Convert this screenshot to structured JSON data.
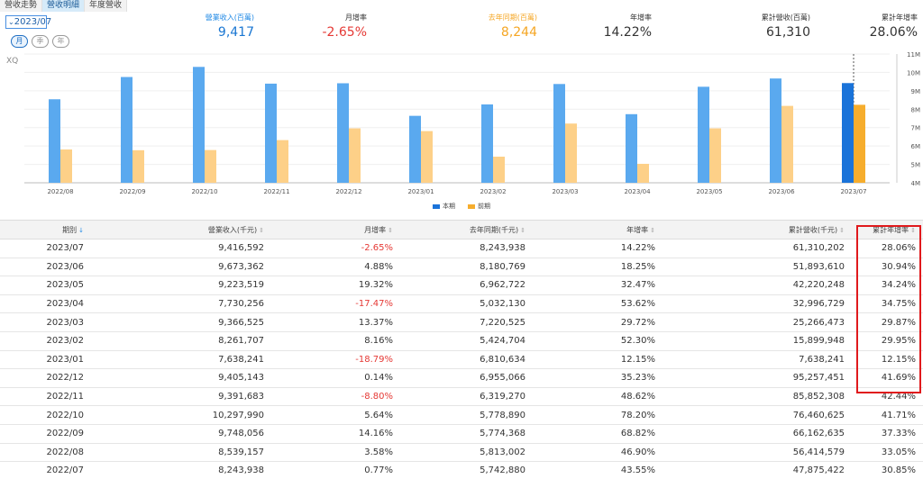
{
  "tabs": [
    "營收走勢",
    "營收明細",
    "年度營收"
  ],
  "active_tab": 1,
  "period_selector": {
    "value": "2023/07"
  },
  "pills": [
    "月",
    "季",
    "年"
  ],
  "stats": [
    {
      "label": "營業收入(百萬)",
      "value": "9,417"
    },
    {
      "label": "月增率",
      "value": "-2.65%"
    },
    {
      "label": "去年同期(百萬)",
      "value": "8,244"
    },
    {
      "label": "年增率",
      "value": "14.22%"
    },
    {
      "label": "累計營收(百萬)",
      "value": "61,310"
    },
    {
      "label": "累計年增率",
      "value": "28.06%"
    }
  ],
  "chart_watermark": "XQ",
  "colors": {
    "current": "#5aa9ef",
    "current_selected": "#1a73d9",
    "prior": "#fdd088",
    "prior_selected": "#f6ad2d",
    "negative": "#e53935",
    "highlight": "#e0191c"
  },
  "chart_data": {
    "type": "bar",
    "categories": [
      "2022/08",
      "2022/09",
      "2022/10",
      "2022/11",
      "2022/12",
      "2023/01",
      "2023/02",
      "2023/03",
      "2023/04",
      "2023/05",
      "2023/06",
      "2023/07"
    ],
    "series": [
      {
        "name": "本期",
        "values": [
          8.54,
          9.75,
          10.3,
          9.39,
          9.41,
          7.64,
          8.26,
          9.37,
          7.73,
          9.22,
          9.67,
          9.42
        ]
      },
      {
        "name": "前期",
        "values": [
          5.81,
          5.77,
          5.78,
          6.32,
          6.96,
          6.81,
          5.42,
          7.22,
          5.03,
          6.96,
          8.18,
          8.24
        ]
      }
    ],
    "y_ticks": [
      "4M",
      "5M",
      "6M",
      "7M",
      "8M",
      "9M",
      "10M",
      "11M"
    ],
    "ylim": [
      4,
      11
    ],
    "selected_index": 11
  },
  "table": {
    "columns": [
      "期別",
      "營業收入(千元)",
      "月增率",
      "去年同期(千元)",
      "年增率",
      "累計營收(千元)",
      "累計年增率"
    ],
    "rows": [
      [
        "2023/07",
        "9,416,592",
        "-2.65%",
        "8,243,938",
        "14.22%",
        "61,310,202",
        "28.06%"
      ],
      [
        "2023/06",
        "9,673,362",
        "4.88%",
        "8,180,769",
        "18.25%",
        "51,893,610",
        "30.94%"
      ],
      [
        "2023/05",
        "9,223,519",
        "19.32%",
        "6,962,722",
        "32.47%",
        "42,220,248",
        "34.24%"
      ],
      [
        "2023/04",
        "7,730,256",
        "-17.47%",
        "5,032,130",
        "53.62%",
        "32,996,729",
        "34.75%"
      ],
      [
        "2023/03",
        "9,366,525",
        "13.37%",
        "7,220,525",
        "29.72%",
        "25,266,473",
        "29.87%"
      ],
      [
        "2023/02",
        "8,261,707",
        "8.16%",
        "5,424,704",
        "52.30%",
        "15,899,948",
        "29.95%"
      ],
      [
        "2023/01",
        "7,638,241",
        "-18.79%",
        "6,810,634",
        "12.15%",
        "7,638,241",
        "12.15%"
      ],
      [
        "2022/12",
        "9,405,143",
        "0.14%",
        "6,955,066",
        "35.23%",
        "95,257,451",
        "41.69%"
      ],
      [
        "2022/11",
        "9,391,683",
        "-8.80%",
        "6,319,270",
        "48.62%",
        "85,852,308",
        "42.44%"
      ],
      [
        "2022/10",
        "10,297,990",
        "5.64%",
        "5,778,890",
        "78.20%",
        "76,460,625",
        "41.71%"
      ],
      [
        "2022/09",
        "9,748,056",
        "14.16%",
        "5,774,368",
        "68.82%",
        "66,162,635",
        "37.33%"
      ],
      [
        "2022/08",
        "8,539,157",
        "3.58%",
        "5,813,002",
        "46.90%",
        "56,414,579",
        "33.05%"
      ],
      [
        "2022/07",
        "8,243,938",
        "0.77%",
        "5,742,880",
        "43.55%",
        "47,875,422",
        "30.85%"
      ]
    ]
  }
}
